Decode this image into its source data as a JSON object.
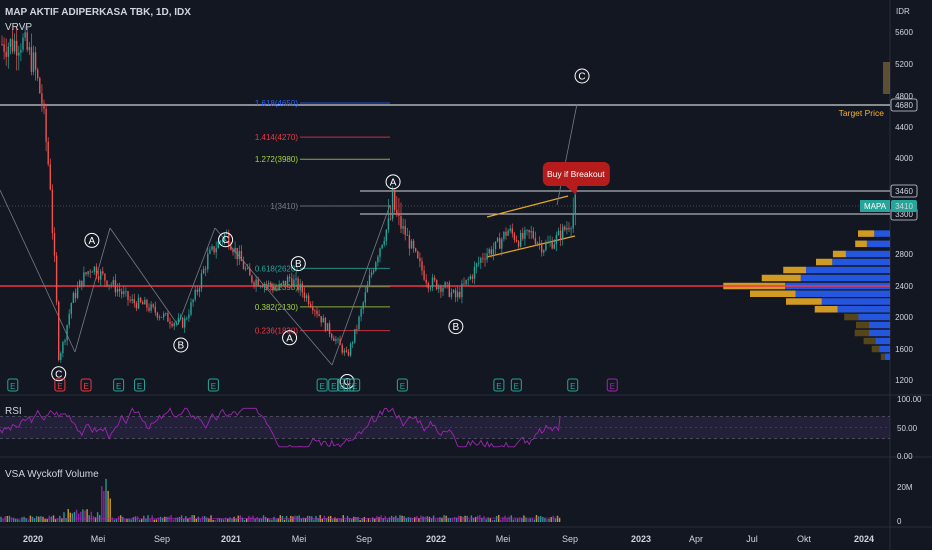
{
  "header": {
    "symbol_title": "MAP AKTIF ADIPERKASA TBK, 1D, IDX",
    "indicator_1": "VRVP",
    "indicator_rsi": "RSI",
    "indicator_volume": "VSA Wyckoff Volume"
  },
  "colors": {
    "background": "#131722",
    "up": "#26a69a",
    "down": "#ef5350",
    "support_line": "#f23645",
    "rsi_line": "#9c27b0",
    "vp_up": "#2962ff",
    "vp_down": "#e5a925",
    "vp_dark": "#5d4a1a",
    "channel": "#e5a925",
    "text": "#d1d4dc"
  },
  "chart_data": [
    {
      "type": "candlestick",
      "title": "MAP AKTIF ADIPERKASA TBK, 1D, IDX",
      "currency": "IDR",
      "x_ticks": [
        "2020",
        "Mei",
        "Sep",
        "2021",
        "Mei",
        "Sep",
        "2022",
        "Mei",
        "Sep",
        "2023",
        "Apr",
        "Jul",
        "Okt",
        "2024"
      ],
      "y_ticks": [
        1200,
        1600,
        2000,
        2400,
        2800,
        3300,
        3410,
        3460,
        4000,
        4400,
        4680,
        4800,
        5200,
        5600
      ],
      "ylim": [
        1150,
        5800
      ],
      "price_path": [
        {
          "x": "2020-01-02",
          "y": 5450
        },
        {
          "x": "2020-01-20",
          "y": 5500
        },
        {
          "x": "2020-02-10",
          "y": 5200
        },
        {
          "x": "2020-02-25",
          "y": 4700
        },
        {
          "x": "2020-03-05",
          "y": 4000
        },
        {
          "x": "2020-03-12",
          "y": 3300
        },
        {
          "x": "2020-03-19",
          "y": 2400
        },
        {
          "x": "2020-03-24",
          "y": 1500
        },
        {
          "x": "2020-04-02",
          "y": 1700
        },
        {
          "x": "2020-04-15",
          "y": 2200
        },
        {
          "x": "2020-05-05",
          "y": 2500
        },
        {
          "x": "2020-05-20",
          "y": 2650
        },
        {
          "x": "2020-06-10",
          "y": 2500
        },
        {
          "x": "2020-07-05",
          "y": 2350
        },
        {
          "x": "2020-07-25",
          "y": 2200
        },
        {
          "x": "2020-08-20",
          "y": 2150
        },
        {
          "x": "2020-09-10",
          "y": 2050
        },
        {
          "x": "2020-10-05",
          "y": 1950
        },
        {
          "x": "2020-10-25",
          "y": 1920
        },
        {
          "x": "2020-11-15",
          "y": 2300
        },
        {
          "x": "2020-12-05",
          "y": 2750
        },
        {
          "x": "2021-01-05",
          "y": 3100
        },
        {
          "x": "2021-01-25",
          "y": 2800
        },
        {
          "x": "2021-02-15",
          "y": 2500
        },
        {
          "x": "2021-03-10",
          "y": 2450
        },
        {
          "x": "2021-04-05",
          "y": 2350
        },
        {
          "x": "2021-04-25",
          "y": 2500
        },
        {
          "x": "2021-05-15",
          "y": 2350
        },
        {
          "x": "2021-06-05",
          "y": 2150
        },
        {
          "x": "2021-06-25",
          "y": 1900
        },
        {
          "x": "2021-07-15",
          "y": 1700
        },
        {
          "x": "2021-08-02",
          "y": 1500
        },
        {
          "x": "2021-08-20",
          "y": 1900
        },
        {
          "x": "2021-09-10",
          "y": 2500
        },
        {
          "x": "2021-10-01",
          "y": 3000
        },
        {
          "x": "2021-10-20",
          "y": 3400
        },
        {
          "x": "2021-11-10",
          "y": 3100
        },
        {
          "x": "2021-12-01",
          "y": 2700
        },
        {
          "x": "2021-12-20",
          "y": 2450
        },
        {
          "x": "2022-01-15",
          "y": 2400
        },
        {
          "x": "2022-02-05",
          "y": 2250
        },
        {
          "x": "2022-03-01",
          "y": 2500
        },
        {
          "x": "2022-03-25",
          "y": 2800
        },
        {
          "x": "2022-04-15",
          "y": 2900
        },
        {
          "x": "2022-05-05",
          "y": 3150
        },
        {
          "x": "2022-05-25",
          "y": 3000
        },
        {
          "x": "2022-06-15",
          "y": 3100
        },
        {
          "x": "2022-07-05",
          "y": 2900
        },
        {
          "x": "2022-07-25",
          "y": 3000
        },
        {
          "x": "2022-08-15",
          "y": 3200
        },
        {
          "x": "2022-09-01",
          "y": 3410
        }
      ],
      "horizontal_levels": [
        {
          "value": 4680,
          "label": "4680",
          "color": "#ffffff"
        },
        {
          "value": 3460,
          "label": "3460",
          "color": "#ffffff"
        },
        {
          "value": 3410,
          "label": "3410",
          "color": "#2a9d8f"
        },
        {
          "value": 3300,
          "label": "3300",
          "color": "#ffffff"
        },
        {
          "value": 2400,
          "label": "",
          "color": "#f23645"
        }
      ],
      "fib_levels": [
        {
          "label": "1.618(4650)",
          "value": 4650,
          "color": "#2962ff"
        },
        {
          "label": "1.414(4270)",
          "value": 4270,
          "color": "#f23645"
        },
        {
          "label": "1.272(3980)",
          "value": 3980,
          "color": "#a5d63c"
        },
        {
          "label": "1(3410)",
          "value": 3410,
          "color": "#787b86"
        },
        {
          "label": "0.618(2620)",
          "value": 2620,
          "color": "#26a69a"
        },
        {
          "label": "0.5(2390)",
          "value": 2390,
          "color": "#4caf50"
        },
        {
          "label": "0.382(2130)",
          "value": 2130,
          "color": "#a5d63c"
        },
        {
          "label": "0.236(1830)",
          "value": 1830,
          "color": "#f23645"
        }
      ],
      "wave_labels": [
        {
          "text": "C",
          "x": "2020-03-24",
          "y": 1280
        },
        {
          "text": "A",
          "x": "2020-05-20",
          "y": 3000
        },
        {
          "text": "B",
          "x": "2020-10-20",
          "y": 1650
        },
        {
          "text": "C",
          "x": "2021-01-05",
          "y": 3010
        },
        {
          "text": "B",
          "x": "2021-05-10",
          "y": 2680
        },
        {
          "text": "A",
          "x": "2021-04-25",
          "y": 1740
        },
        {
          "text": "C",
          "x": "2021-08-02",
          "y": 1180
        },
        {
          "text": "A",
          "x": "2021-10-20",
          "y": 3610
        },
        {
          "text": "B",
          "x": "2022-02-05",
          "y": 1880
        },
        {
          "text": "C",
          "x": "2022-09-10",
          "y": 5050
        }
      ],
      "earnings_markers": [
        "2020-01-05",
        "2020-03-26",
        "2020-05-10",
        "2020-07-05",
        "2020-08-10",
        "2020-12-15",
        "2021-06-20",
        "2021-07-10",
        "2021-07-25",
        "2021-08-05",
        "2021-08-15",
        "2021-11-05",
        "2022-04-20",
        "2022-05-20",
        "2022-08-25",
        "2022-11-01"
      ],
      "annotations": [
        {
          "text": "Buy if Breakout",
          "x": "2022-08-20",
          "y": 3770
        },
        {
          "text": "Target Price",
          "y": 4480
        },
        {
          "text": "MAPA",
          "y": 3410
        }
      ]
    },
    {
      "type": "line",
      "title": "RSI",
      "y_ticks": [
        "100.00",
        "50.00",
        "0.00"
      ],
      "bands": [
        30,
        70
      ],
      "ylim": [
        0,
        100
      ],
      "last_value": 70
    },
    {
      "type": "bar",
      "title": "VSA Wyckoff Volume",
      "y_ticks": [
        "20M",
        "0"
      ],
      "ylim": [
        0,
        30000000
      ]
    },
    {
      "type": "bar",
      "title": "VRVP",
      "orientation": "horizontal",
      "rows": [
        {
          "price": 3100,
          "up": 0.15,
          "down": 0.25
        },
        {
          "price": 2950,
          "up": 0.22,
          "down": 0.18
        },
        {
          "price": 2800,
          "up": 0.42,
          "down": 0.2
        },
        {
          "price": 2700,
          "up": 0.55,
          "down": 0.25
        },
        {
          "price": 2600,
          "up": 0.8,
          "down": 0.35
        },
        {
          "price": 2500,
          "up": 0.85,
          "down": 0.6
        },
        {
          "price": 2400,
          "up": 1.0,
          "down": 0.95
        },
        {
          "price": 2300,
          "up": 0.9,
          "down": 0.7
        },
        {
          "price": 2200,
          "up": 0.65,
          "down": 0.55
        },
        {
          "price": 2100,
          "up": 0.5,
          "down": 0.35
        },
        {
          "price": 2000,
          "up": 0.3,
          "down": 0.22
        },
        {
          "price": 1900,
          "up": 0.2,
          "down": 0.2
        },
        {
          "price": 1800,
          "up": 0.2,
          "down": 0.22
        },
        {
          "price": 1700,
          "up": 0.14,
          "down": 0.18
        },
        {
          "price": 1600,
          "up": 0.1,
          "down": 0.12
        },
        {
          "price": 1500,
          "up": 0.05,
          "down": 0.06
        }
      ]
    }
  ]
}
